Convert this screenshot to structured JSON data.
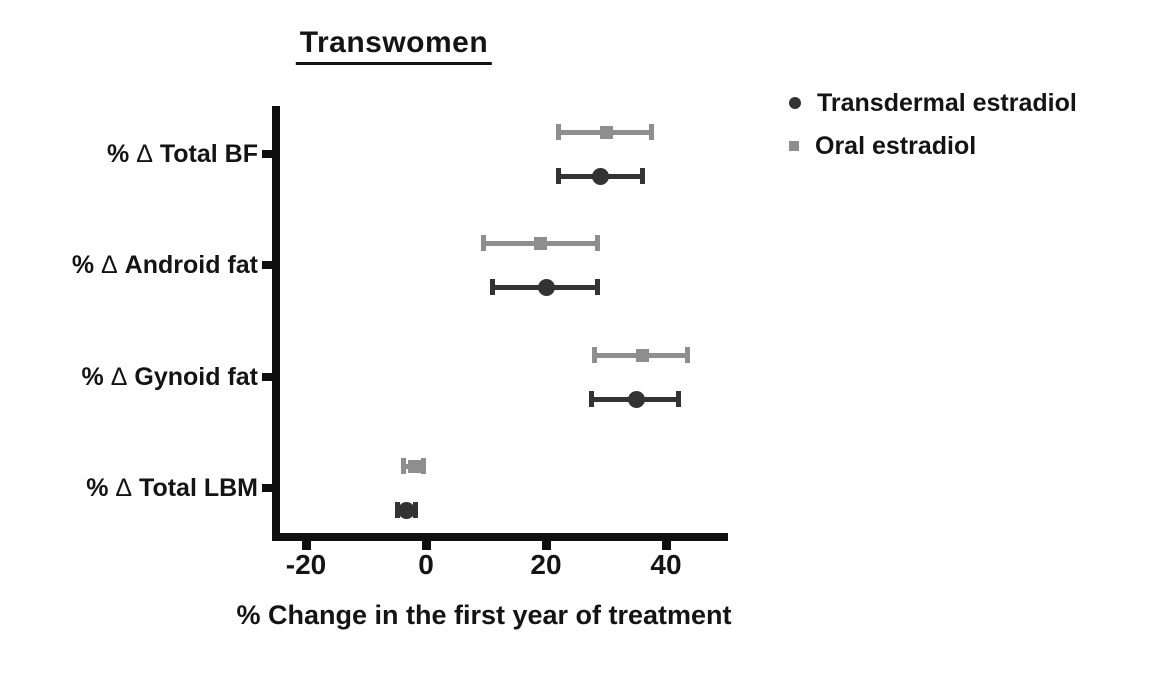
{
  "chart_data": {
    "type": "scatter",
    "subtype": "horizontal-dot-plot-with-error-bars",
    "title": "Transwomen",
    "xlabel": "% Change in the first year of treatment",
    "categories": [
      "% Δ Total BF",
      "% Δ Android fat",
      "% Δ Gynoid fat",
      "% Δ Total LBM"
    ],
    "x_ticks": [
      -20,
      0,
      20,
      40
    ],
    "xlim": [
      -26,
      50
    ],
    "grid": false,
    "legend_position": "top-right",
    "series": [
      {
        "name": "Oral estradiol",
        "marker": "square",
        "color": "#8e8e8e",
        "row_position": "above",
        "values": [
          {
            "category": "% Δ Total BF",
            "mean": 30,
            "lo": 22,
            "hi": 37.5
          },
          {
            "category": "% Δ Android fat",
            "mean": 19,
            "lo": 9.5,
            "hi": 28.5
          },
          {
            "category": "% Δ Gynoid fat",
            "mean": 36,
            "lo": 28,
            "hi": 43.5
          },
          {
            "category": "% Δ Total LBM",
            "mean": -2,
            "lo": -3.8,
            "hi": -0.5
          }
        ]
      },
      {
        "name": "Transdermal estradiol",
        "marker": "circle",
        "color": "#333333",
        "row_position": "below",
        "values": [
          {
            "category": "% Δ Total BF",
            "mean": 29,
            "lo": 22,
            "hi": 36
          },
          {
            "category": "% Δ Android fat",
            "mean": 20,
            "lo": 11,
            "hi": 28.5
          },
          {
            "category": "% Δ Gynoid fat",
            "mean": 35,
            "lo": 27.5,
            "hi": 42
          },
          {
            "category": "% Δ Total LBM",
            "mean": -3.2,
            "lo": -4.8,
            "hi": -1.8
          }
        ]
      }
    ]
  }
}
